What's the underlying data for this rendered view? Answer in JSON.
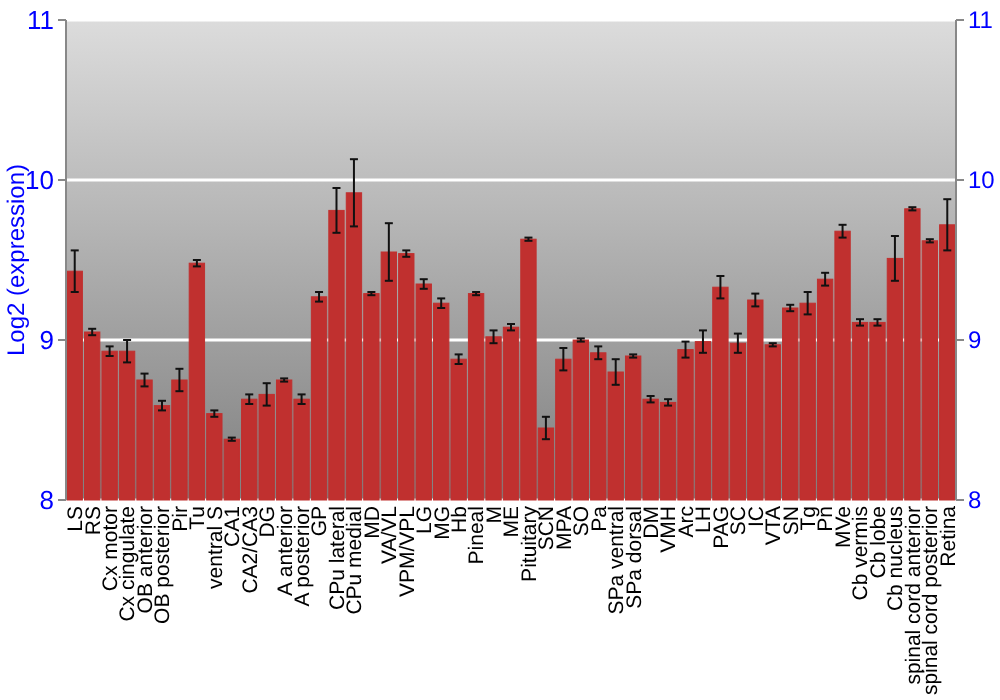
{
  "chart_data": {
    "type": "bar",
    "ylabel": "Log2 (expression)",
    "categories": [
      "LS",
      "RS",
      "Cx motor",
      "Cx cingulate",
      "OB anterior",
      "OB posterior",
      "Pir",
      "Tu",
      "ventral S",
      "CA1",
      "CA2/CA3",
      "DG",
      "A anterior",
      "A posterior",
      "GP",
      "CPu lateral",
      "CPu medial",
      "MD",
      "VA/VL",
      "VPM/VPL",
      "LG",
      "MG",
      "Hb",
      "Pineal",
      "M",
      "ME",
      "Pituitary",
      "SCN",
      "MPA",
      "SO",
      "Pa",
      "SPa ventral",
      "SPa dorsal",
      "DM",
      "VMH",
      "Arc",
      "LH",
      "PAG",
      "SC",
      "IC",
      "VTA",
      "SN",
      "Tg",
      "Pn",
      "MVe",
      "Cb vermis",
      "Cb lobe",
      "Cb nucleus",
      "spinal cord anterior",
      "spinal cord posterior",
      "Retina"
    ],
    "values": [
      9.43,
      9.05,
      8.93,
      8.93,
      8.75,
      8.59,
      8.75,
      9.48,
      8.54,
      8.38,
      8.63,
      8.66,
      8.75,
      8.63,
      9.27,
      9.81,
      9.92,
      9.29,
      9.55,
      9.54,
      9.35,
      9.23,
      8.88,
      9.29,
      9.02,
      9.08,
      9.63,
      8.45,
      8.88,
      9.0,
      8.92,
      8.8,
      8.9,
      8.63,
      8.61,
      8.94,
      8.99,
      9.33,
      8.98,
      9.25,
      8.97,
      9.2,
      9.23,
      9.38,
      9.68,
      9.11,
      9.11,
      9.51,
      9.82,
      9.62,
      9.72
    ],
    "errors": [
      0.13,
      0.02,
      0.03,
      0.07,
      0.04,
      0.03,
      0.07,
      0.02,
      0.02,
      0.01,
      0.03,
      0.07,
      0.01,
      0.03,
      0.03,
      0.14,
      0.21,
      0.01,
      0.18,
      0.02,
      0.03,
      0.03,
      0.03,
      0.01,
      0.04,
      0.02,
      0.01,
      0.07,
      0.07,
      0.01,
      0.04,
      0.08,
      0.01,
      0.02,
      0.02,
      0.05,
      0.07,
      0.07,
      0.06,
      0.04,
      0.01,
      0.02,
      0.07,
      0.04,
      0.04,
      0.02,
      0.02,
      0.14,
      0.01,
      0.01,
      0.16
    ],
    "color": "#c0302f",
    "ylim": [
      8,
      11
    ],
    "yticks": [
      8,
      9,
      10,
      11
    ],
    "y2lim": [
      8,
      11
    ],
    "y2ticks": [
      8,
      9,
      10,
      11
    ],
    "grid": "y"
  }
}
